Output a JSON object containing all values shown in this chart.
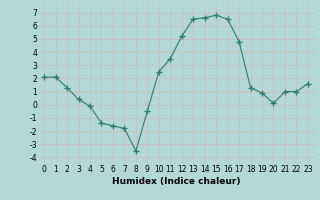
{
  "x": [
    0,
    1,
    2,
    3,
    4,
    5,
    6,
    7,
    8,
    9,
    10,
    11,
    12,
    13,
    14,
    15,
    16,
    17,
    18,
    19,
    20,
    21,
    22,
    23
  ],
  "y": [
    2.1,
    2.1,
    1.3,
    0.4,
    -0.1,
    -1.4,
    -1.6,
    -1.8,
    -3.5,
    -0.5,
    2.5,
    3.5,
    5.2,
    6.5,
    6.6,
    6.8,
    6.5,
    4.8,
    1.3,
    0.9,
    0.1,
    1.0,
    1.0,
    1.6
  ],
  "line_color": "#2e7d6e",
  "marker": "+",
  "marker_size": 4,
  "bg_color": "#b2d8d8",
  "grid_color": "#d8b8b8",
  "xlabel": "Humidex (Indice chaleur)",
  "xlim": [
    -0.5,
    23.5
  ],
  "ylim": [
    -4.5,
    7.5
  ],
  "yticks": [
    -4,
    -3,
    -2,
    -1,
    0,
    1,
    2,
    3,
    4,
    5,
    6,
    7
  ],
  "xticks": [
    0,
    1,
    2,
    3,
    4,
    5,
    6,
    7,
    8,
    9,
    10,
    11,
    12,
    13,
    14,
    15,
    16,
    17,
    18,
    19,
    20,
    21,
    22,
    23
  ],
  "tick_fontsize": 5.5,
  "xlabel_fontsize": 6.5
}
